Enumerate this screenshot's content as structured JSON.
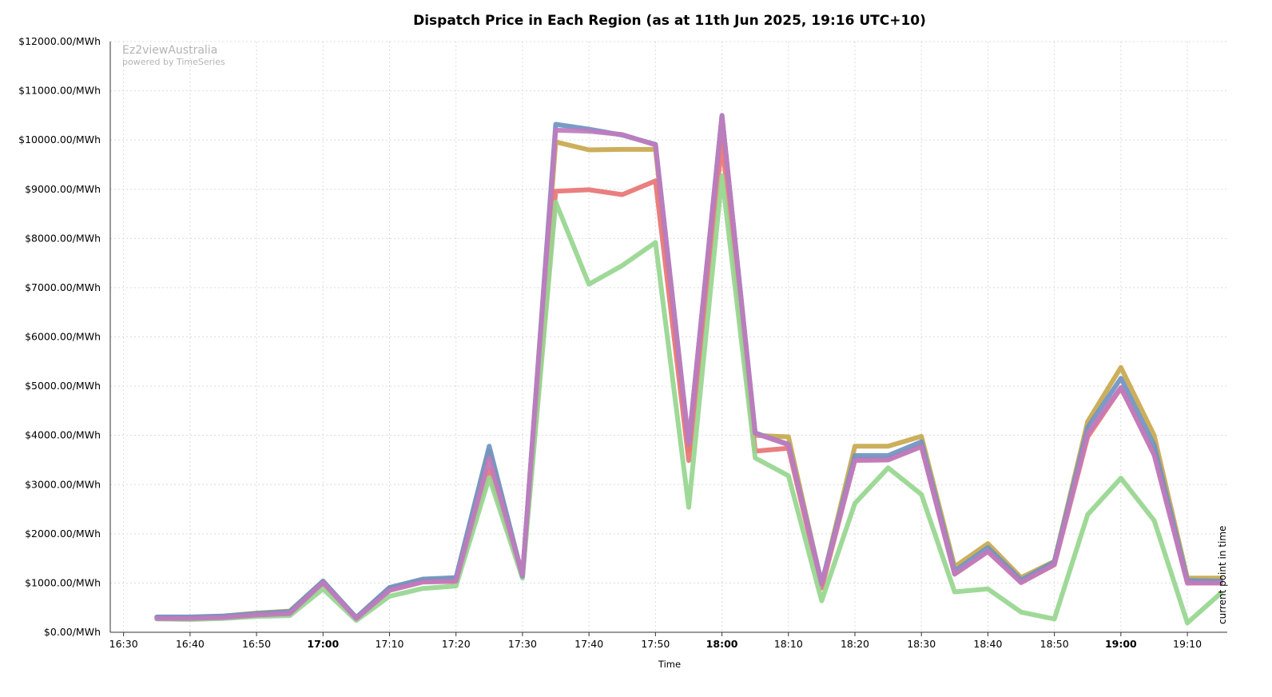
{
  "chart_data": {
    "type": "line",
    "title": "Dispatch Price in Each Region (as at 11th Jun 2025, 19:16 UTC+10)",
    "xlabel": "Time",
    "ylabel": "",
    "ylim": [
      0,
      12000
    ],
    "y_ticks": [
      0,
      1000,
      2000,
      3000,
      4000,
      5000,
      6000,
      7000,
      8000,
      9000,
      10000,
      11000,
      12000
    ],
    "y_tick_labels": [
      "$0.00/MWh",
      "$1000.00/MWh",
      "$2000.00/MWh",
      "$3000.00/MWh",
      "$4000.00/MWh",
      "$5000.00/MWh",
      "$6000.00/MWh",
      "$7000.00/MWh",
      "$8000.00/MWh",
      "$9000.00/MWh",
      "$10000.00/MWh",
      "$11000.00/MWh",
      "$12000.00/MWh"
    ],
    "x_ticks": [
      "16:30",
      "16:40",
      "16:50",
      "17:00",
      "17:10",
      "17:20",
      "17:30",
      "17:40",
      "17:50",
      "18:00",
      "18:10",
      "18:20",
      "18:30",
      "18:40",
      "18:50",
      "19:00",
      "19:10"
    ],
    "x_ticks_bold": [
      "17:00",
      "18:00",
      "19:00"
    ],
    "xlim": [
      "16:28",
      "19:16"
    ],
    "grid": true,
    "legend": "none",
    "current_point_label": "current point in time",
    "current_point_time": "19:16",
    "x": [
      "16:35",
      "16:40",
      "16:45",
      "16:50",
      "16:55",
      "17:00",
      "17:05",
      "17:10",
      "17:15",
      "17:20",
      "17:25",
      "17:30",
      "17:35",
      "17:40",
      "17:45",
      "17:50",
      "17:55",
      "18:00",
      "18:05",
      "18:10",
      "18:15",
      "18:20",
      "18:25",
      "18:30",
      "18:35",
      "18:40",
      "18:45",
      "18:50",
      "18:55",
      "19:00",
      "19:05",
      "19:10",
      "19:15"
    ],
    "series": [
      {
        "color": "#c8a84e",
        "values": [
          300,
          300,
          330,
          390,
          430,
          1040,
          290,
          900,
          1060,
          1080,
          3680,
          1140,
          9960,
          9800,
          9810,
          9810,
          3700,
          10480,
          4000,
          3970,
          970,
          3780,
          3780,
          3980,
          1330,
          1800,
          1110,
          1440,
          4280,
          5380,
          4000,
          1100,
          1100
        ]
      },
      {
        "color": "#e87474",
        "values": [
          290,
          280,
          300,
          350,
          380,
          1000,
          270,
          870,
          1030,
          1030,
          3300,
          1150,
          8960,
          8990,
          8890,
          9170,
          3490,
          9960,
          3680,
          3740,
          900,
          3510,
          3520,
          3780,
          1180,
          1640,
          1010,
          1370,
          3970,
          4960,
          3640,
          1000,
          1000
        ]
      },
      {
        "color": "#97d68f",
        "values": [
          270,
          260,
          280,
          320,
          340,
          880,
          240,
          730,
          890,
          940,
          3140,
          1100,
          8740,
          7070,
          7450,
          7920,
          2540,
          9270,
          3540,
          3180,
          640,
          2620,
          3340,
          2800,
          820,
          880,
          410,
          270,
          2390,
          3130,
          2270,
          190,
          790
        ]
      },
      {
        "color": "#6f93c2",
        "values": [
          310,
          310,
          330,
          380,
          420,
          1040,
          300,
          910,
          1080,
          1110,
          3780,
          1140,
          10320,
          10220,
          10100,
          9910,
          3830,
          10500,
          4050,
          3820,
          1000,
          3590,
          3590,
          3870,
          1240,
          1720,
          1060,
          1430,
          4160,
          5160,
          3800,
          1050,
          1040
        ]
      },
      {
        "color": "#c07bbd",
        "values": [
          280,
          280,
          300,
          350,
          380,
          1010,
          280,
          850,
          1020,
          1040,
          3530,
          1160,
          10200,
          10180,
          10110,
          9900,
          3830,
          10490,
          4040,
          3810,
          980,
          3490,
          3500,
          3770,
          1180,
          1640,
          1010,
          1380,
          4040,
          4970,
          3600,
          1000,
          1000
        ]
      }
    ]
  },
  "watermark": {
    "line1": "Ez2viewAustralia",
    "line2": "powered by TimeSeries"
  }
}
